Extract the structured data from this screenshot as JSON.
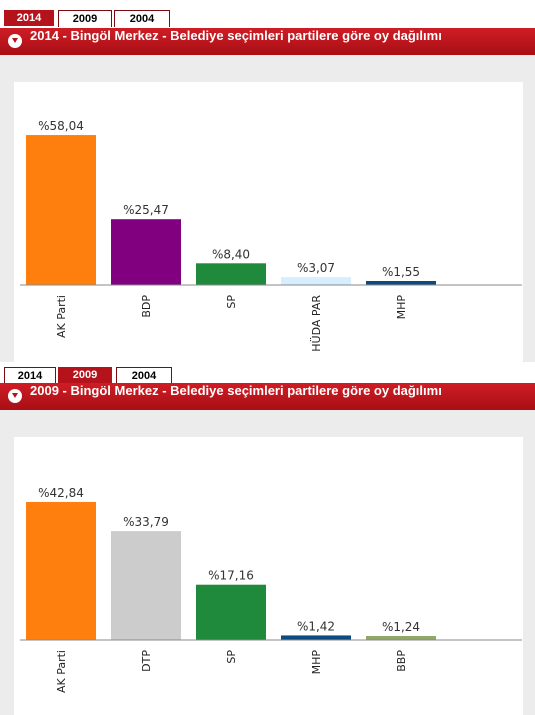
{
  "tabs": [
    "2014",
    "2009",
    "2004"
  ],
  "colors": {
    "header": "#b5131b",
    "axis": "#8a8a8a"
  },
  "chart_data": [
    {
      "type": "bar",
      "title": "2014 - Bingöl Merkez - Belediye seçimleri partilere göre oy dağılımı",
      "active_tab": "2014",
      "categories": [
        "AK Parti",
        "BDP",
        "SP",
        "HÜDA PAR",
        "MHP"
      ],
      "values": [
        58.04,
        25.47,
        8.4,
        3.07,
        1.55
      ],
      "data_labels": [
        "%58,04",
        "%25,47",
        "%8,40",
        "%3,07",
        "%1,55"
      ],
      "colors": [
        "#ff7f0e",
        "#800080",
        "#1f8a3c",
        "#d6efff",
        "#0d4a80"
      ],
      "ylim": [
        0,
        60
      ]
    },
    {
      "type": "bar",
      "title": "2009 - Bingöl Merkez - Belediye seçimleri partilere göre oy dağılımı",
      "active_tab": "2009",
      "categories": [
        "AK Parti",
        "DTP",
        "SP",
        "MHP",
        "BBP"
      ],
      "values": [
        42.84,
        33.79,
        17.16,
        1.42,
        1.24
      ],
      "data_labels": [
        "%42,84",
        "%33,79",
        "%17,16",
        "%1,42",
        "%1,24"
      ],
      "colors": [
        "#ff7f0e",
        "#cccccc",
        "#1f8a3c",
        "#0d4a80",
        "#8fa86a"
      ],
      "ylim": [
        0,
        45
      ]
    }
  ]
}
